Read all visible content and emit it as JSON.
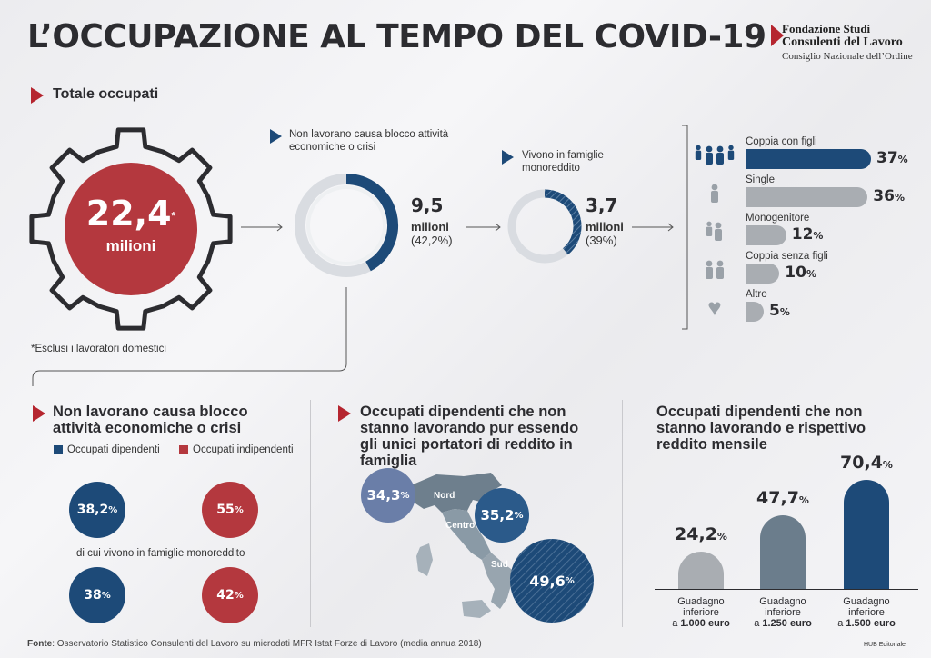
{
  "header": {
    "title": "L’OCCUPAZIONE AL TEMPO DEL COVID-19"
  },
  "logo": {
    "line1": "Fondazione Studi",
    "line2": "Consulenti del Lavoro",
    "line3": "Consiglio Nazionale dell’Ordine"
  },
  "colors": {
    "red": "#b4383e",
    "navy": "#1d4a78",
    "slate": "#6b7d8c",
    "gray": "#a9adb2",
    "ring_gray": "#d9dce1"
  },
  "totale": {
    "heading": "Totale occupati",
    "value": "22,4",
    "asterisk": "*",
    "unit": "milioni",
    "note": "*Esclusi i lavoratori domestici"
  },
  "blocco": {
    "label": "Non lavorano causa blocco attività economiche o crisi",
    "value": "9,5",
    "unit": "milioni",
    "pct": "(42,2%)",
    "fraction": 0.422
  },
  "monoreddito": {
    "label": "Vivono in famiglie monoreddito",
    "value": "3,7",
    "unit": "milioni",
    "pct": "(39%)",
    "fraction": 0.39
  },
  "chart_data": [
    {
      "type": "bar",
      "categories": [
        "Coppia con figli",
        "Single",
        "Monogenitore",
        "Coppia senza figli",
        "Altro"
      ],
      "values": [
        37,
        36,
        12,
        10,
        5
      ],
      "labels": [
        "37",
        "36",
        "12",
        "10",
        "5"
      ],
      "unit": "%"
    },
    {
      "type": "pie",
      "title": "Non lavorano causa blocco attività economiche o crisi",
      "legend": [
        "Occupati dipendenti",
        "Occupati indipendenti"
      ],
      "row1": {
        "dipendenti": "38,2",
        "indipendenti": "55"
      },
      "sublabel": "di cui vivono in famiglie monoreddito",
      "row2": {
        "dipendenti": "38",
        "indipendenti": "42"
      },
      "unit": "%"
    },
    {
      "type": "bubble-map",
      "title": "Occupati dipendenti che non stanno lavorando pur essendo gli unici portatori di reddito in famiglia",
      "regions": [
        "Nord",
        "Centro",
        "Sud"
      ],
      "values": [
        34.3,
        35.2,
        49.6
      ],
      "labels": [
        "34,3",
        "35,2",
        "49,6"
      ],
      "unit": "%"
    },
    {
      "type": "bar",
      "title": "Occupati dipendenti che non stanno lavorando e rispettivo reddito mensile",
      "categories": [
        "Guadagno inferiore a 1.000 euro",
        "Guadagno inferiore a 1.250 euro",
        "Guadagno inferiore a 1.500 euro"
      ],
      "values": [
        24.2,
        47.7,
        70.4
      ],
      "labels": [
        "24,2",
        "47,7",
        "70,4"
      ],
      "unit": "%"
    }
  ],
  "bar_label_parts": [
    [
      "Guadagno",
      "inferiore",
      "a ",
      "1.000 euro"
    ],
    [
      "Guadagno",
      "inferiore",
      "a ",
      "1.250 euro"
    ],
    [
      "Guadagno",
      "inferiore",
      "a ",
      "1.500 euro"
    ]
  ],
  "sections": {
    "blocco_title": "Non lavorano causa blocco attività economiche o crisi",
    "map_title": "Occupati dipendenti che non stanno lavorando pur essendo gli unici portatori di reddito in famiglia",
    "income_title": "Occupati dipendenti che non stanno lavorando e rispettivo reddito mensile"
  },
  "footer": {
    "label": "Fonte",
    "text": ": Osservatorio Statistico Consulenti del Lavoro su microdati MFR Istat Forze di Lavoro (media annua 2018)",
    "credit": "HUB Editoriale"
  }
}
